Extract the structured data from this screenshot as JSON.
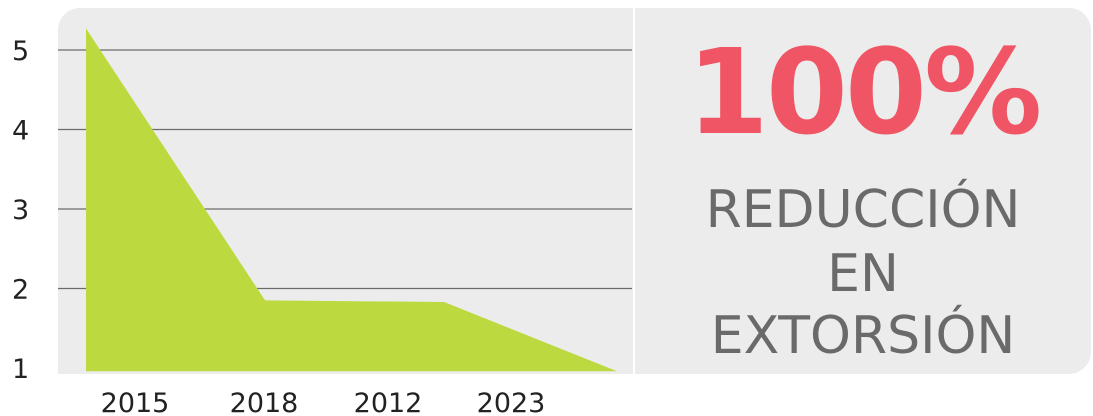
{
  "chart_data": {
    "type": "area",
    "categories": [
      "2015",
      "2018",
      "2012",
      "2023"
    ],
    "x": [
      0,
      1,
      2,
      3,
      4
    ],
    "values": [
      5.27,
      1.85,
      1.83,
      0.96
    ],
    "series_points": [
      {
        "x": 0.0,
        "y": 5.27
      },
      {
        "x": 1.45,
        "y": 1.85
      },
      {
        "x": 2.9,
        "y": 1.83
      },
      {
        "x": 4.3,
        "y": 0.96
      }
    ],
    "ylim": [
      0.96,
      5.5
    ],
    "yticks": [
      1,
      2,
      3,
      4,
      5
    ],
    "ytick_labels": [
      "1",
      "2",
      "3",
      "4",
      "5"
    ],
    "grid": "horizontal",
    "colors": {
      "area": "#bcd93f",
      "grid": "#6b6b6b",
      "panel": "#ececec"
    }
  },
  "stat": {
    "value": "100%",
    "line1": "REDUCCIÓN",
    "line2": "EN",
    "line3": "EXTORSIÓN",
    "value_color": "#f05566",
    "text_color": "#6a6a6a"
  }
}
